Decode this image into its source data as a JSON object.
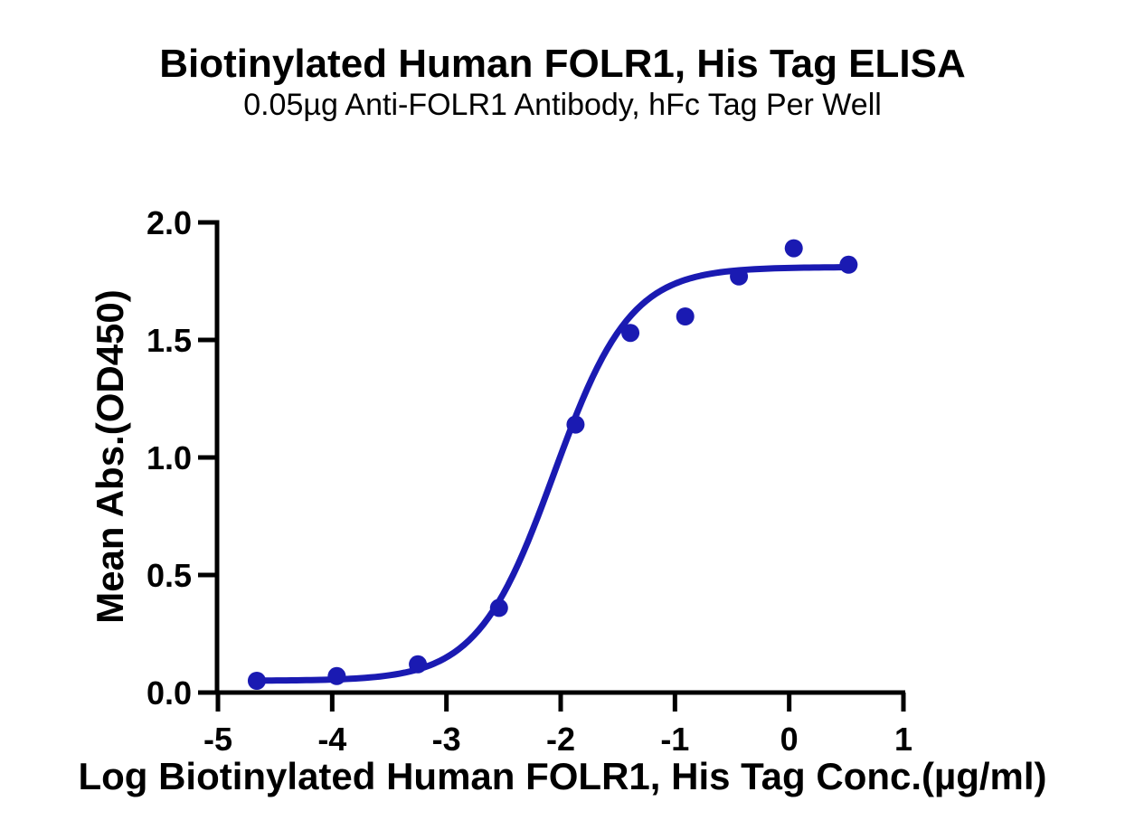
{
  "chart_data": {
    "type": "scatter",
    "title": "Biotinylated Human FOLR1, His Tag ELISA",
    "subtitle": "0.05µg Anti-FOLR1 Antibody, hFc Tag Per Well",
    "xlabel": "Log Biotinylated Human FOLR1, His Tag Conc.(µg/ml)",
    "ylabel": "Mean Abs.(OD450)",
    "x": [
      -4.66,
      -3.96,
      -3.25,
      -2.54,
      -1.87,
      -1.39,
      -0.91,
      -0.44,
      0.04,
      0.52
    ],
    "y": [
      0.05,
      0.07,
      0.12,
      0.36,
      1.14,
      1.53,
      1.6,
      1.77,
      1.89,
      1.82
    ],
    "curve_fit": {
      "model": "4PL-sigmoid",
      "bottom": 0.05,
      "top": 1.81,
      "logEC50": -2.06,
      "hill": 1.3
    },
    "xlim": [
      -5,
      1
    ],
    "ylim": [
      0,
      2
    ],
    "xticks": [
      -5,
      -4,
      -3,
      -2,
      -1,
      0,
      1
    ],
    "xtick_labels": [
      "-5",
      "-4",
      "-3",
      "-2",
      "-1",
      "0",
      "1"
    ],
    "yticks": [
      0,
      0.5,
      1,
      1.5,
      2
    ],
    "ytick_labels": [
      "0.0",
      "0.5",
      "1.0",
      "1.5",
      "2.0"
    ],
    "grid": false,
    "legend": null,
    "point_color": "#1a1ab2",
    "line_color": "#1a1ab2",
    "axis_color": "#000000",
    "tick_font_size": 36,
    "point_radius": 10,
    "line_width": 7,
    "axis_width": 5
  }
}
